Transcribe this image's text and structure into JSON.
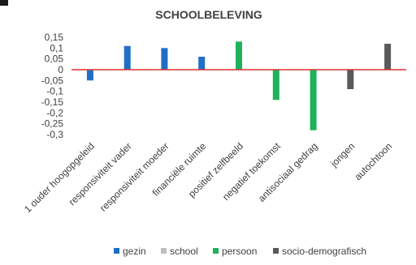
{
  "chart_data": {
    "type": "bar",
    "title": "SCHOOLBELEVING",
    "xlabel": "",
    "ylabel": "",
    "ylim": [
      -0.3,
      0.15
    ],
    "yticks": [
      0.15,
      0.1,
      0.05,
      0,
      -0.05,
      -0.1,
      -0.15,
      -0.2,
      -0.25,
      -0.3
    ],
    "ytick_labels": [
      "0,15",
      "0,1",
      "0,05",
      "0",
      "-0,05",
      "-0,1",
      "-0,15",
      "-0,2",
      "-0,25",
      "-0,3"
    ],
    "categories": [
      "1 ouder hoogopgeleid",
      "responsiviteit vader",
      "responsiviteit moeder",
      "financiële ruimte",
      "positief zelfbeeld",
      "negatief toekomst",
      "antisociaal gedrag",
      "jongen",
      "autochtoon"
    ],
    "values": [
      -0.05,
      0.11,
      0.1,
      0.06,
      0.13,
      -0.14,
      -0.28,
      -0.09,
      0.12
    ],
    "groups": [
      "gezin",
      "gezin",
      "gezin",
      "gezin",
      "persoon",
      "persoon",
      "persoon",
      "socio-demografisch",
      "socio-demografisch"
    ],
    "legend": [
      {
        "name": "gezin",
        "color": "#1f6fc5"
      },
      {
        "name": "school",
        "color": "#bfbfbf"
      },
      {
        "name": "persoon",
        "color": "#1fb25a"
      },
      {
        "name": "socio-demografisch",
        "color": "#595959"
      }
    ],
    "zero_line_color": "#e03030",
    "grid": false,
    "legend_position": "bottom"
  }
}
